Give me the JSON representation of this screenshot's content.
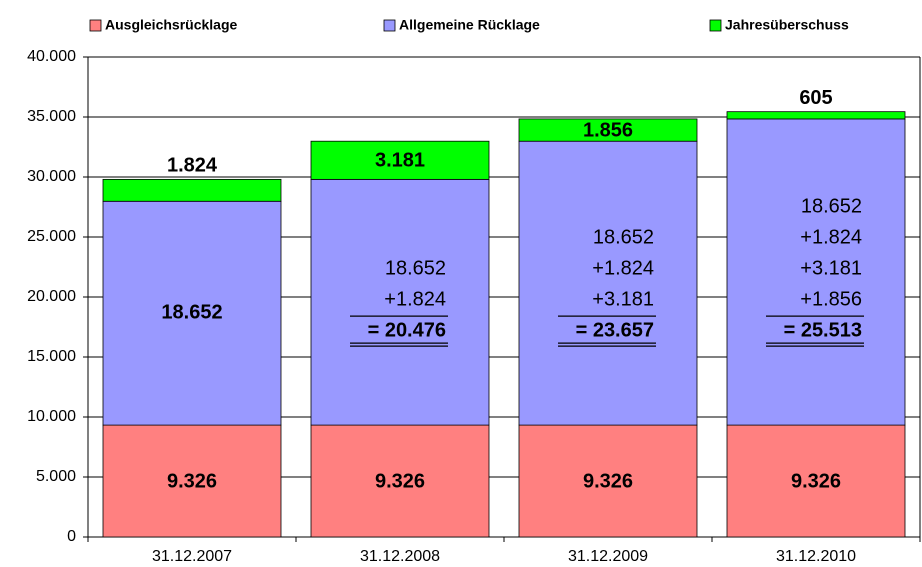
{
  "chart_data": {
    "type": "stacked_bar",
    "categories": [
      "31.12.2007",
      "31.12.2008",
      "31.12.2009",
      "31.12.2010"
    ],
    "series": [
      {
        "name": "Ausgleichsrücklage",
        "color": "#ff8080",
        "values": [
          9326,
          9326,
          9326,
          9326
        ],
        "value_labels": [
          "9.326",
          "9.326",
          "9.326",
          "9.326"
        ]
      },
      {
        "name": "Allgemeine Rücklage",
        "color": "#9999ff",
        "values": [
          18652,
          20476,
          23657,
          25513
        ],
        "value_labels": [
          [
            "18.652"
          ],
          [
            "18.652",
            "+1.824",
            "= 20.476"
          ],
          [
            "18.652",
            "+1.824",
            "+3.181",
            "= 23.657"
          ],
          [
            "18.652",
            "+1.824",
            "+3.181",
            "+1.856",
            "= 25.513"
          ]
        ]
      },
      {
        "name": "Jahresüberschuss",
        "color": "#00ff00",
        "values": [
          1824,
          3181,
          1856,
          605
        ],
        "value_labels": [
          "1.824",
          "3.181",
          "1.856",
          "605"
        ]
      }
    ],
    "ylim": [
      0,
      40000
    ],
    "yticks": [
      0,
      {
        "value": 5000,
        "label": "5.000"
      },
      {
        "value": 10000,
        "label": "10.000"
      },
      {
        "value": 15000,
        "label": "15.000"
      },
      {
        "value": 20000,
        "label": "20.000"
      },
      {
        "value": 25000,
        "label": "25.000"
      },
      {
        "value": 30000,
        "label": "30.000"
      },
      {
        "value": 35000,
        "label": "35.000"
      },
      {
        "value": 40000,
        "label": "40.000"
      }
    ],
    "grid": true,
    "legend": "top"
  }
}
